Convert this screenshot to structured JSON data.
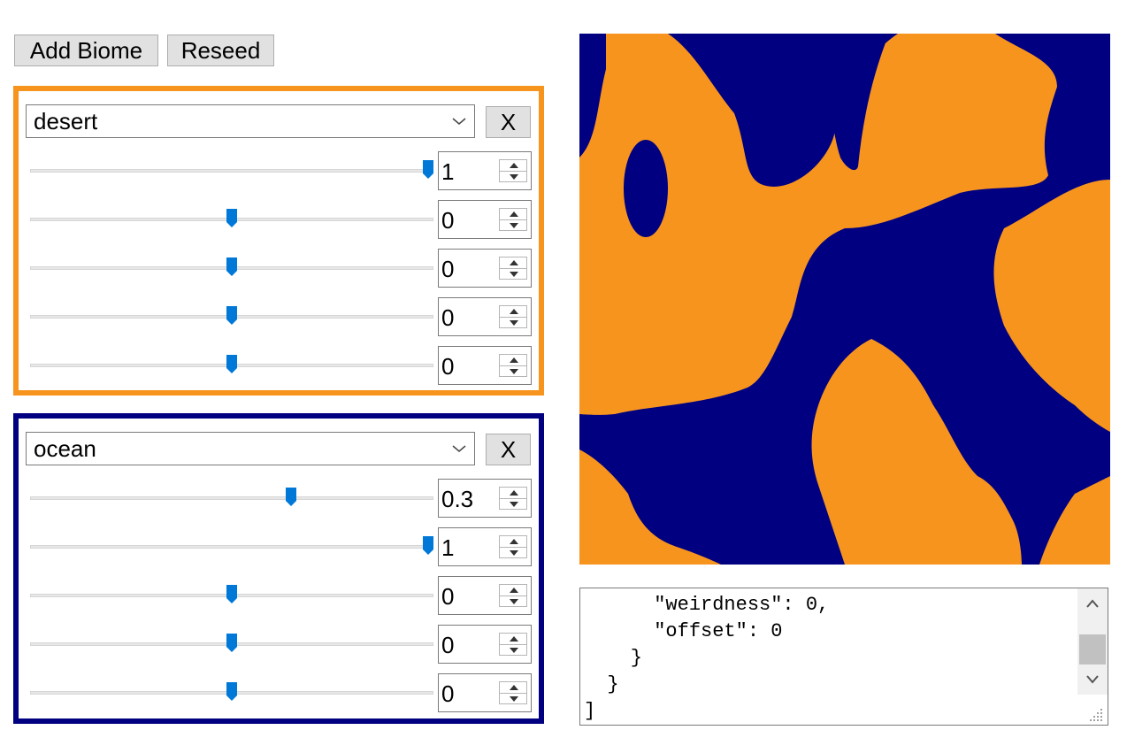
{
  "toolbar": {
    "add_biome_label": "Add Biome",
    "reseed_label": "Reseed"
  },
  "biomes": [
    {
      "name": "desert",
      "color": "#f7941d",
      "remove_label": "X",
      "params": [
        {
          "value": "1",
          "slider_fraction": 1.0
        },
        {
          "value": "0",
          "slider_fraction": 0.5
        },
        {
          "value": "0",
          "slider_fraction": 0.5
        },
        {
          "value": "0",
          "slider_fraction": 0.5
        },
        {
          "value": "0",
          "slider_fraction": 0.5
        }
      ]
    },
    {
      "name": "ocean",
      "color": "#000080",
      "remove_label": "X",
      "params": [
        {
          "value": "0.3",
          "slider_fraction": 0.65
        },
        {
          "value": "1",
          "slider_fraction": 1.0
        },
        {
          "value": "0",
          "slider_fraction": 0.5
        },
        {
          "value": "0",
          "slider_fraction": 0.5
        },
        {
          "value": "0",
          "slider_fraction": 0.5
        }
      ]
    }
  ],
  "preview": {
    "background_color": "#000080",
    "foreground_color": "#f7941d"
  },
  "json_output": "      \"weirdness\": 0,\n      \"offset\": 0\n    }\n  }\n]"
}
